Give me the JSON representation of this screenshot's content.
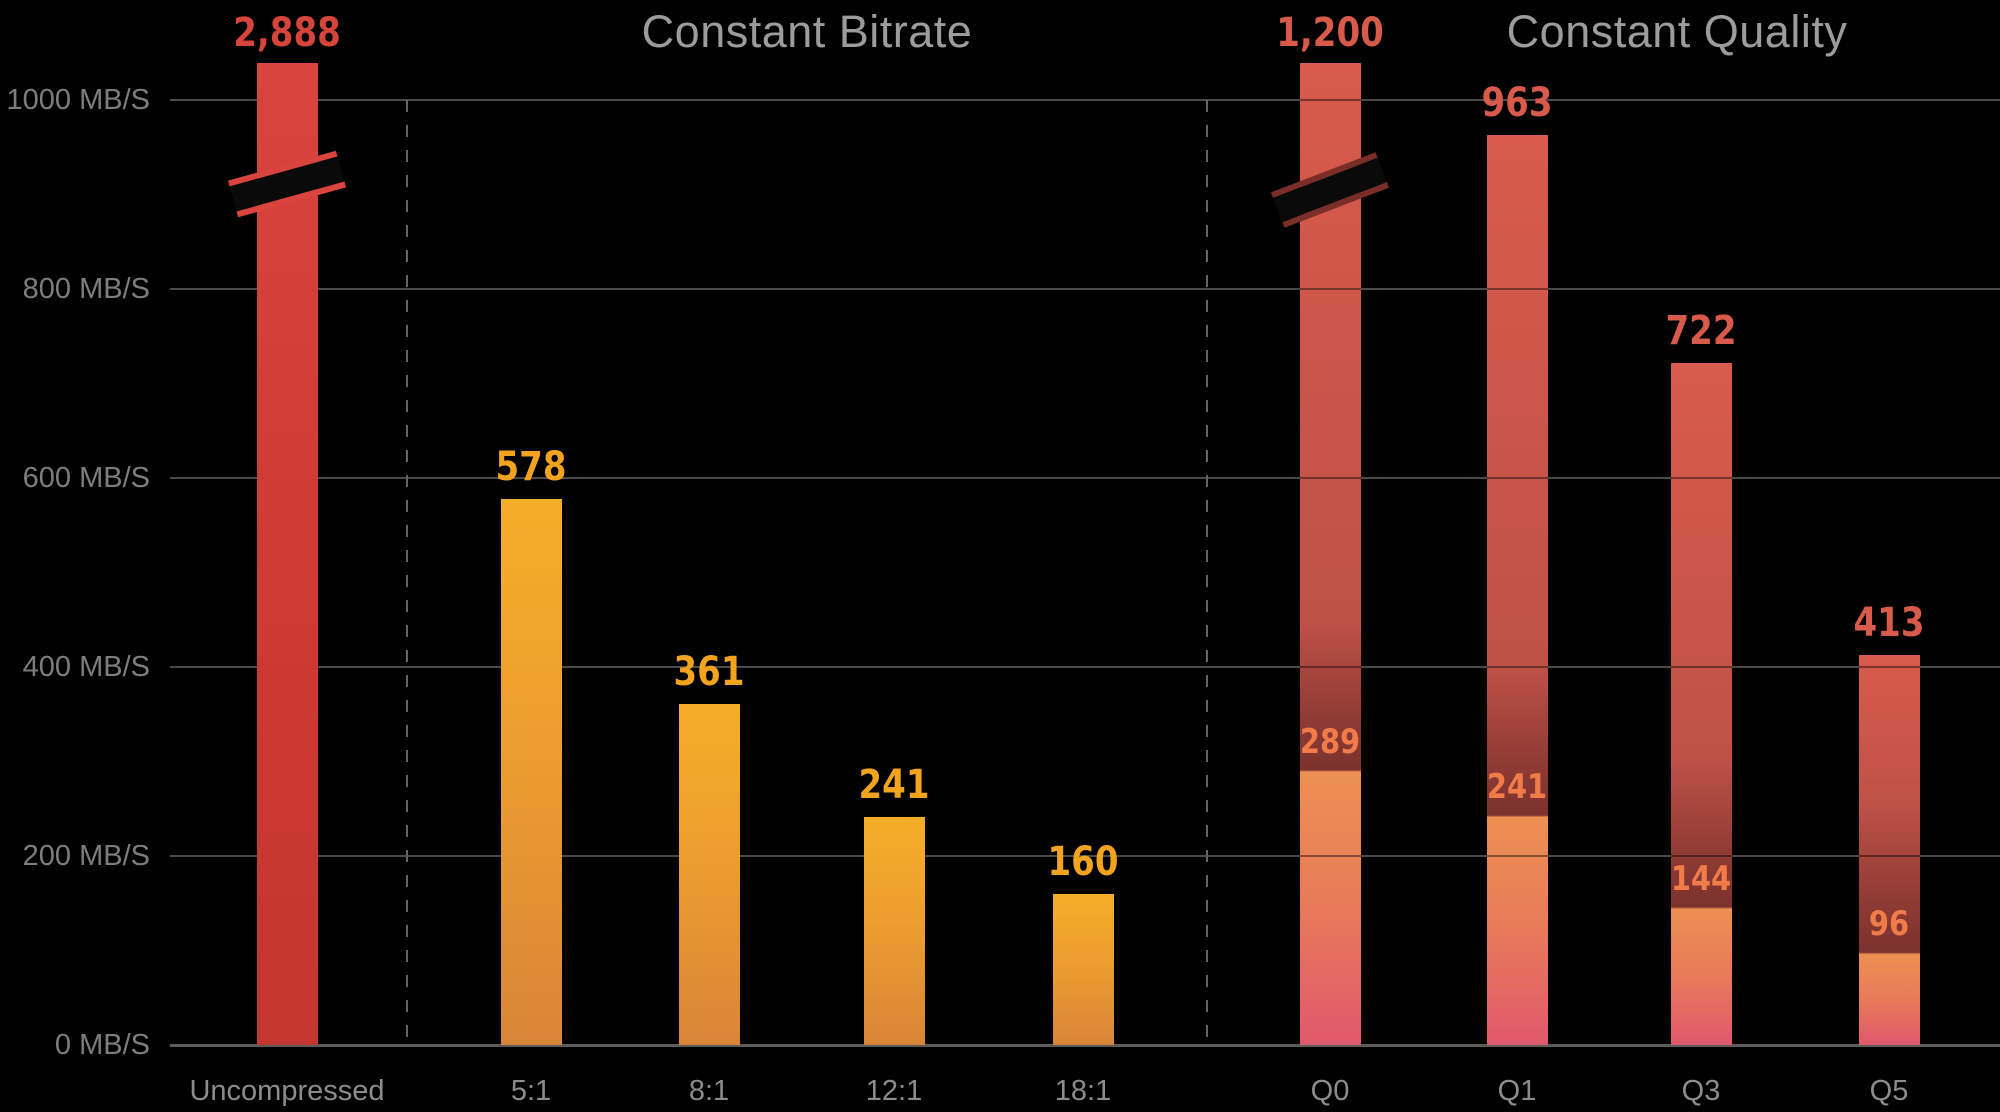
{
  "colors": {
    "background": "#000000",
    "gridline": "#4a4a4a",
    "axis_line": "#5c5c5c",
    "dashed_line": "#636363",
    "ytick_text": "#7d7d7d",
    "category_text": "#8c8c8c",
    "section_title_text": "#9c9c9c",
    "bar_red_top": "#d9453c",
    "bar_red_mid": "#cf3a34",
    "bar_red_bottom": "#c43630",
    "label_red": "#d6453c",
    "bar_orange_top": "#f4ae28",
    "bar_orange_mid": "#ec9e2e",
    "bar_orange_bottom": "#d98538",
    "label_orange": "#f2a41f",
    "cq_top": "#d85b4c",
    "cq_mid": "#bf5147",
    "cq_dark_mid": "#8e3b34",
    "cq_dark": "#7c322d",
    "cq_below_avg": "#ec9052",
    "cq_lower_mid": "#e87a59",
    "cq_bottom": "#e0586c",
    "label_salmon": "#d85a4b",
    "label_avg": "#f27c49",
    "break_black": "#0a0a0a"
  },
  "chart_data": {
    "type": "bar",
    "unit": "MB/S",
    "ylim": [
      0,
      1040
    ],
    "sections": [
      {
        "title": "Constant Bitrate"
      },
      {
        "title": "Constant Quality"
      }
    ],
    "yticks": [
      {
        "value": 1000,
        "label": "1000 MB/S"
      },
      {
        "value": 800,
        "label": "800 MB/S"
      },
      {
        "value": 600,
        "label": "600 MB/S"
      },
      {
        "value": 400,
        "label": "400 MB/S"
      },
      {
        "value": 200,
        "label": "200 MB/S"
      },
      {
        "value": 0,
        "label": "0 MB/S"
      }
    ],
    "bars": [
      {
        "category": "Uncompressed",
        "value": 2888,
        "value_label": "2,888",
        "group": "red",
        "clipped": true
      },
      {
        "category": "5:1",
        "value": 578,
        "value_label": "578",
        "group": "orange"
      },
      {
        "category": "8:1",
        "value": 361,
        "value_label": "361",
        "group": "orange"
      },
      {
        "category": "12:1",
        "value": 241,
        "value_label": "241",
        "group": "orange"
      },
      {
        "category": "18:1",
        "value": 160,
        "value_label": "160",
        "group": "orange"
      },
      {
        "category": "Q0",
        "value": 1200,
        "value_label": "1,200",
        "group": "cq",
        "clipped": true,
        "average": 289,
        "average_label": "289"
      },
      {
        "category": "Q1",
        "value": 963,
        "value_label": "963",
        "group": "cq",
        "average": 241,
        "average_label": "241"
      },
      {
        "category": "Q3",
        "value": 722,
        "value_label": "722",
        "group": "cq",
        "average": 144,
        "average_label": "144"
      },
      {
        "category": "Q5",
        "value": 413,
        "value_label": "413",
        "group": "cq",
        "average": 96,
        "average_label": "96"
      }
    ]
  }
}
